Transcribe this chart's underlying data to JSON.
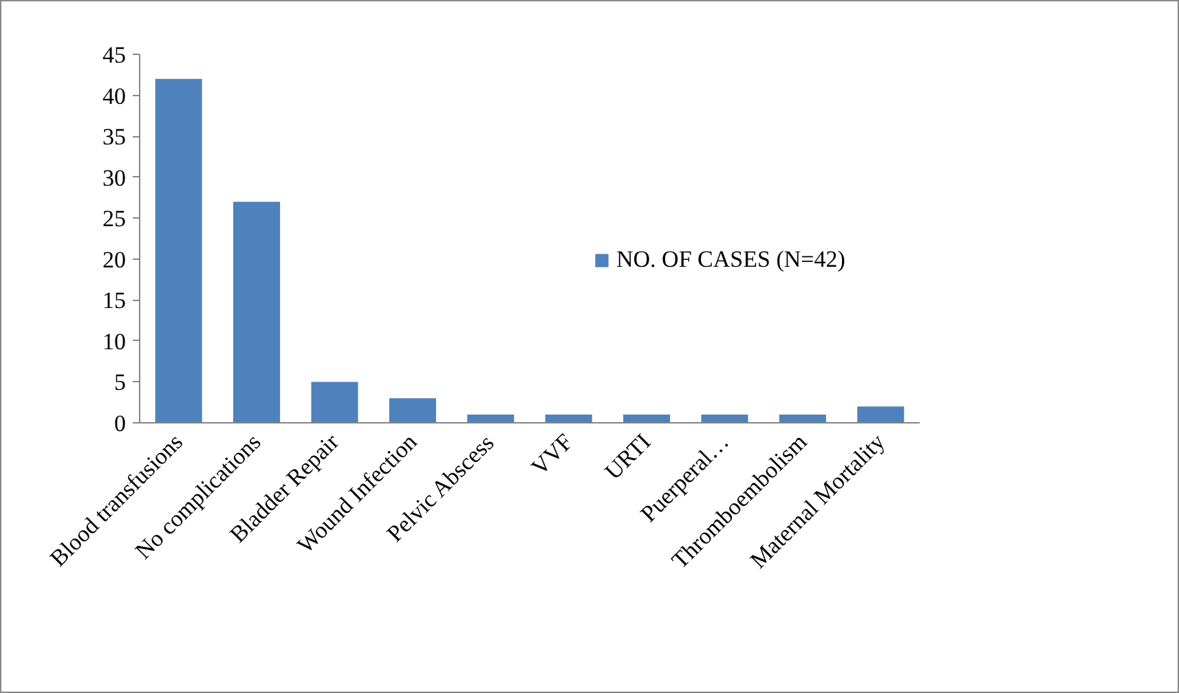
{
  "chart_data": {
    "type": "bar",
    "categories": [
      "Blood transfusions",
      "No complications",
      "Bladder Repair",
      "Wound Infection",
      "Pelvic Abscess",
      "VVF",
      "URTI",
      "Puerperal…",
      "Thromboembolism",
      "Maternal Mortality"
    ],
    "series": [
      {
        "name": "NO. OF CASES (N=42)",
        "color": "#4f81bd",
        "values": [
          42,
          27,
          5,
          3,
          1,
          1,
          1,
          1,
          1,
          2
        ]
      }
    ],
    "ylim": [
      0,
      45
    ],
    "yticks": [
      0,
      5,
      10,
      15,
      20,
      25,
      30,
      35,
      40,
      45
    ],
    "grid": false,
    "legend": "right"
  }
}
